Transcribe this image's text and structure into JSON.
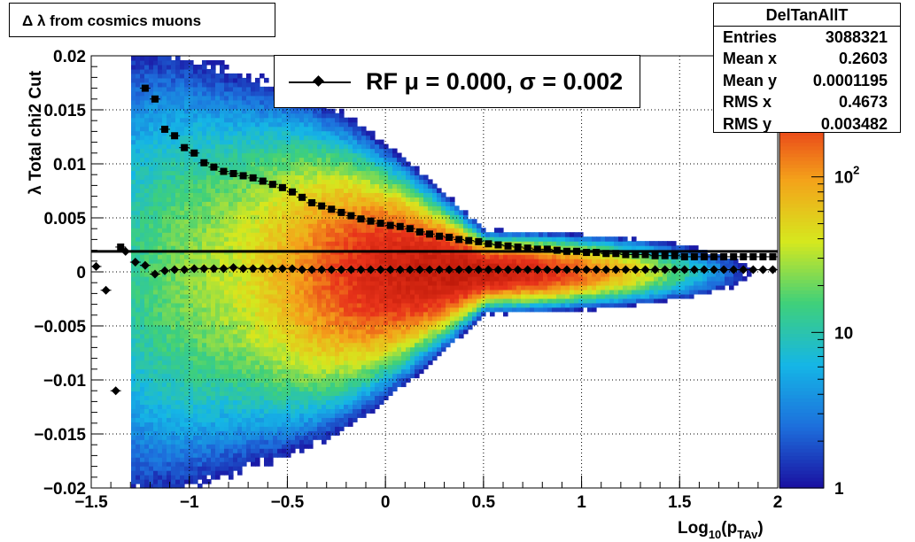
{
  "title": "Δ λ from cosmics muons",
  "stats": {
    "name": "DelTanAllT",
    "rows": [
      {
        "label": "Entries",
        "value": "3088321"
      },
      {
        "label": "Mean x",
        "value": "0.2603"
      },
      {
        "label": "Mean y",
        "value": "0.0001195"
      },
      {
        "label": "RMS x",
        "value": "0.4673"
      },
      {
        "label": "RMS y",
        "value": "0.003482"
      }
    ]
  },
  "legend": {
    "text": "RF μ =  0.000, σ =   0.002"
  },
  "colors": {
    "palette": [
      "#1a0fa0",
      "#1d6fdc",
      "#15b6e6",
      "#3fd07a",
      "#d6e81e",
      "#f4a21a",
      "#e8331a",
      "#c01a0a"
    ],
    "frame": "#000000"
  },
  "chart_data": {
    "type": "heatmap",
    "xlabel": "Log10(pTAv)",
    "ylabel": "λ  Total chi2 Cut",
    "xlim": [
      -1.5,
      2
    ],
    "ylim": [
      -0.02,
      0.02
    ],
    "xticks": [
      -1.5,
      -1,
      -0.5,
      0,
      0.5,
      1,
      1.5,
      2
    ],
    "xtick_labels": [
      "−1.5",
      "−1",
      "−0.5",
      "0",
      "0.5",
      "1",
      "1.5",
      "2"
    ],
    "yticks": [
      0.02,
      0.015,
      0.01,
      0.005,
      0,
      -0.005,
      -0.01,
      -0.015,
      -0.02
    ],
    "ytick_labels": [
      "0.02",
      "0.015",
      "0.01",
      "0.005",
      "0",
      "−0.005",
      "−0.01",
      "−0.015",
      "−0.02"
    ],
    "grid": true,
    "z_scale": "log",
    "zlim": [
      1,
      600
    ],
    "zticks": [
      {
        "value": 1,
        "label": "1"
      },
      {
        "value": 10,
        "label": "10"
      },
      {
        "value": 100,
        "label": "10",
        "sup": "2"
      }
    ],
    "horizontal_line_y": 0.0019,
    "series": [
      {
        "name": "sigma",
        "marker": "square",
        "points": [
          [
            -1.35,
            0.0023
          ],
          [
            -1.225,
            0.017
          ],
          [
            -1.175,
            0.016
          ],
          [
            -1.125,
            0.0132
          ],
          [
            -1.075,
            0.0126
          ],
          [
            -1.025,
            0.0115
          ],
          [
            -0.975,
            0.011
          ],
          [
            -0.925,
            0.0101
          ],
          [
            -0.875,
            0.0097
          ],
          [
            -0.825,
            0.0093
          ],
          [
            -0.775,
            0.0091
          ],
          [
            -0.725,
            0.0089
          ],
          [
            -0.675,
            0.0087
          ],
          [
            -0.625,
            0.0084
          ],
          [
            -0.575,
            0.0081
          ],
          [
            -0.525,
            0.0078
          ],
          [
            -0.475,
            0.0074
          ],
          [
            -0.425,
            0.0069
          ],
          [
            -0.375,
            0.0064
          ],
          [
            -0.325,
            0.0061
          ],
          [
            -0.275,
            0.0058
          ],
          [
            -0.225,
            0.0055
          ],
          [
            -0.175,
            0.0052
          ],
          [
            -0.125,
            0.0049
          ],
          [
            -0.075,
            0.0047
          ],
          [
            -0.025,
            0.0045
          ],
          [
            0.025,
            0.0043
          ],
          [
            0.075,
            0.0042
          ],
          [
            0.125,
            0.004
          ],
          [
            0.175,
            0.0037
          ],
          [
            0.225,
            0.0035
          ],
          [
            0.275,
            0.0033
          ],
          [
            0.325,
            0.0032
          ],
          [
            0.375,
            0.003
          ],
          [
            0.425,
            0.0029
          ],
          [
            0.475,
            0.0028
          ],
          [
            0.525,
            0.0026
          ],
          [
            0.575,
            0.0025
          ],
          [
            0.625,
            0.0024
          ],
          [
            0.675,
            0.0023
          ],
          [
            0.725,
            0.0022
          ],
          [
            0.775,
            0.0021
          ],
          [
            0.825,
            0.0021
          ],
          [
            0.875,
            0.002
          ],
          [
            0.925,
            0.0019
          ],
          [
            0.975,
            0.0019
          ],
          [
            1.025,
            0.0018
          ],
          [
            1.075,
            0.0018
          ],
          [
            1.125,
            0.0017
          ],
          [
            1.175,
            0.0017
          ],
          [
            1.225,
            0.0016
          ],
          [
            1.275,
            0.0016
          ],
          [
            1.325,
            0.0016
          ],
          [
            1.375,
            0.0015
          ],
          [
            1.425,
            0.0015
          ],
          [
            1.475,
            0.0015
          ],
          [
            1.525,
            0.0014
          ],
          [
            1.575,
            0.0014
          ],
          [
            1.625,
            0.0014
          ],
          [
            1.675,
            0.0014
          ],
          [
            1.725,
            0.0014
          ],
          [
            1.775,
            0.0014
          ],
          [
            1.825,
            0.0014
          ],
          [
            1.875,
            0.0014
          ],
          [
            1.925,
            0.0014
          ],
          [
            1.975,
            0.0014
          ]
        ]
      },
      {
        "name": "mean",
        "marker": "diamond",
        "points": [
          [
            -1.475,
            0.0005
          ],
          [
            -1.425,
            -0.0017
          ],
          [
            -1.375,
            -0.011
          ],
          [
            -1.325,
            0.0019
          ],
          [
            -1.275,
            0.0009
          ],
          [
            -1.225,
            0.0006
          ],
          [
            -1.175,
            -0.0002
          ],
          [
            -1.125,
            0.0001
          ],
          [
            -1.075,
            0.0002
          ],
          [
            -1.025,
            0.0002
          ],
          [
            -0.975,
            0.0003
          ],
          [
            -0.925,
            0.0003
          ],
          [
            -0.875,
            0.0003
          ],
          [
            -0.825,
            0.0003
          ],
          [
            -0.775,
            0.0004
          ],
          [
            -0.725,
            0.0003
          ],
          [
            -0.675,
            0.0003
          ],
          [
            -0.625,
            0.0003
          ],
          [
            -0.575,
            0.0003
          ],
          [
            -0.525,
            0.0003
          ],
          [
            -0.475,
            0.0003
          ],
          [
            -0.425,
            0.0002
          ],
          [
            -0.375,
            0.0002
          ],
          [
            -0.325,
            0.0002
          ],
          [
            -0.275,
            0.0002
          ],
          [
            -0.225,
            0.0002
          ],
          [
            -0.175,
            0.0002
          ],
          [
            -0.125,
            0.0002
          ],
          [
            -0.075,
            0.0002
          ],
          [
            -0.025,
            0.0002
          ],
          [
            0.025,
            0.0002
          ],
          [
            0.075,
            0.0002
          ],
          [
            0.125,
            0.0002
          ],
          [
            0.175,
            0.0002
          ],
          [
            0.225,
            0.0002
          ],
          [
            0.275,
            0.0002
          ],
          [
            0.325,
            0.0002
          ],
          [
            0.375,
            0.0002
          ],
          [
            0.425,
            0.0002
          ],
          [
            0.475,
            0.0002
          ],
          [
            0.525,
            0.0002
          ],
          [
            0.575,
            0.0002
          ],
          [
            0.625,
            0.0002
          ],
          [
            0.675,
            0.0002
          ],
          [
            0.725,
            0.0002
          ],
          [
            0.775,
            0.0002
          ],
          [
            0.825,
            0.0002
          ],
          [
            0.875,
            0.0002
          ],
          [
            0.925,
            0.0002
          ],
          [
            0.975,
            0.0002
          ],
          [
            1.025,
            0.0002
          ],
          [
            1.075,
            0.0002
          ],
          [
            1.125,
            0.0002
          ],
          [
            1.175,
            0.0002
          ],
          [
            1.225,
            0.0002
          ],
          [
            1.275,
            0.0002
          ],
          [
            1.325,
            0.0002
          ],
          [
            1.375,
            0.0002
          ],
          [
            1.425,
            0.0002
          ],
          [
            1.475,
            0.0002
          ],
          [
            1.525,
            0.0002
          ],
          [
            1.575,
            0.0002
          ],
          [
            1.625,
            0.0002
          ],
          [
            1.675,
            0.0002
          ],
          [
            1.725,
            0.0002
          ],
          [
            1.775,
            0.0002
          ],
          [
            1.825,
            0.0002
          ],
          [
            1.875,
            0.0002
          ],
          [
            1.925,
            0.0002
          ],
          [
            1.975,
            0.0002
          ]
        ]
      }
    ]
  }
}
